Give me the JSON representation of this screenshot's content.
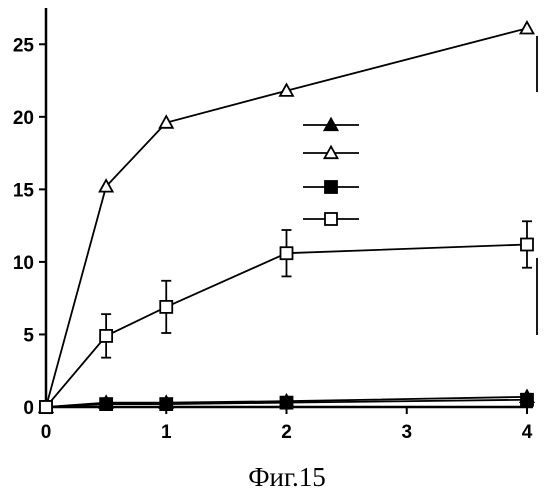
{
  "chart_data": {
    "type": "line",
    "title": "",
    "caption": "Фиг.15",
    "xlabel": "",
    "ylabel": "",
    "xlim": [
      0,
      4.05
    ],
    "ylim": [
      0,
      27.5
    ],
    "x_ticks": [
      0,
      1,
      2,
      3,
      4
    ],
    "y_ticks": [
      0,
      5,
      10,
      15,
      20,
      25
    ],
    "grid": false,
    "legend": {
      "placement": "center-right",
      "labels_visible": false
    },
    "series": [
      {
        "marker": "filled-triangle",
        "x": [
          0,
          0.5,
          1,
          2,
          4
        ],
        "y": [
          0,
          0.3,
          0.3,
          0.4,
          0.7
        ]
      },
      {
        "marker": "open-triangle",
        "x": [
          0,
          0.5,
          1,
          2,
          4
        ],
        "y": [
          0,
          15.2,
          19.6,
          21.8,
          26.1
        ]
      },
      {
        "marker": "filled-square",
        "x": [
          0,
          0.5,
          1,
          2,
          4
        ],
        "y": [
          0,
          0.2,
          0.2,
          0.3,
          0.5
        ]
      },
      {
        "marker": "open-square",
        "x": [
          0,
          0.5,
          1,
          2,
          4
        ],
        "y": [
          0,
          4.9,
          6.9,
          10.6,
          11.2
        ],
        "error": [
          0,
          1.5,
          1.8,
          1.6,
          1.6
        ]
      }
    ]
  }
}
